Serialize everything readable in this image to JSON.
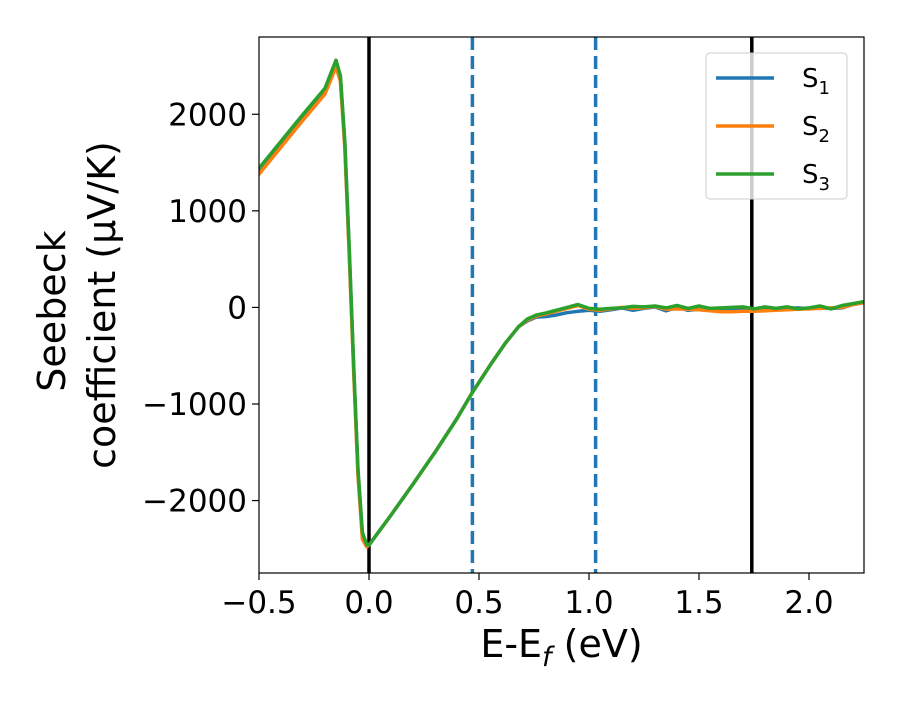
{
  "chart_data": {
    "type": "line",
    "xlabel": "E-E_f (eV)",
    "xlabel_parts": [
      "E-E",
      "f",
      " (eV)"
    ],
    "ylabel_lines": [
      "Seebeck",
      "coefficient  (μV/K)"
    ],
    "xlim": [
      -0.5,
      2.25
    ],
    "ylim": [
      -2750,
      2800
    ],
    "xticks": [
      -0.5,
      0.0,
      0.5,
      1.0,
      1.5,
      2.0
    ],
    "xtick_labels": [
      "−0.5",
      "0.0",
      "0.5",
      "1.0",
      "1.5",
      "2.0"
    ],
    "yticks": [
      -2000,
      -1000,
      0,
      1000,
      2000
    ],
    "ytick_labels": [
      "−2000",
      "−1000",
      "0",
      "1000",
      "2000"
    ],
    "grid": false,
    "legend_position": "top-right",
    "vertical_lines": [
      {
        "x": 0.0,
        "style": "solid",
        "color": "#000000"
      },
      {
        "x": 0.47,
        "style": "dashed",
        "color": "#1f77b4"
      },
      {
        "x": 1.03,
        "style": "dashed",
        "color": "#1f77b4"
      },
      {
        "x": 1.74,
        "style": "solid",
        "color": "#000000"
      }
    ],
    "series": [
      {
        "name": "S_1",
        "name_base": "S",
        "name_sub": "1",
        "color": "#1f77b4",
        "x": [
          -0.5,
          -0.3,
          -0.2,
          -0.15,
          -0.13,
          -0.11,
          -0.09,
          -0.07,
          -0.05,
          -0.03,
          -0.01,
          0.0,
          0.1,
          0.2,
          0.3,
          0.4,
          0.47,
          0.55,
          0.62,
          0.68,
          0.72,
          0.76,
          0.8,
          0.85,
          0.9,
          0.95,
          1.0,
          1.05,
          1.1,
          1.15,
          1.2,
          1.25,
          1.3,
          1.35,
          1.4,
          1.45,
          1.5,
          1.55,
          1.6,
          1.65,
          1.7,
          1.75,
          1.8,
          1.85,
          1.9,
          1.95,
          2.0,
          2.05,
          2.1,
          2.15,
          2.2,
          2.25
        ],
        "y": [
          1420,
          1980,
          2250,
          2540,
          2380,
          1700,
          600,
          -600,
          -1700,
          -2350,
          -2470,
          -2460,
          -2150,
          -1830,
          -1500,
          -1150,
          -880,
          -600,
          -370,
          -200,
          -140,
          -100,
          -95,
          -80,
          -55,
          -40,
          -30,
          -40,
          -25,
          -5,
          -30,
          -10,
          5,
          -35,
          0,
          -30,
          -20,
          -10,
          -15,
          -10,
          -25,
          -35,
          -20,
          -25,
          -10,
          -5,
          -15,
          -5,
          -10,
          -5,
          30,
          50
        ]
      },
      {
        "name": "S_2",
        "name_base": "S",
        "name_sub": "2",
        "color": "#ff7f0e",
        "x": [
          -0.5,
          -0.3,
          -0.2,
          -0.15,
          -0.13,
          -0.11,
          -0.09,
          -0.07,
          -0.05,
          -0.03,
          -0.01,
          0.0,
          0.1,
          0.2,
          0.3,
          0.4,
          0.47,
          0.55,
          0.62,
          0.68,
          0.72,
          0.76,
          0.8,
          0.85,
          0.9,
          0.95,
          1.0,
          1.05,
          1.1,
          1.15,
          1.2,
          1.25,
          1.3,
          1.35,
          1.4,
          1.45,
          1.5,
          1.55,
          1.6,
          1.65,
          1.7,
          1.75,
          1.8,
          1.85,
          1.9,
          1.95,
          2.0,
          2.05,
          2.1,
          2.15,
          2.2,
          2.25
        ],
        "y": [
          1380,
          1940,
          2210,
          2490,
          2340,
          1650,
          550,
          -650,
          -1750,
          -2400,
          -2480,
          -2460,
          -2150,
          -1830,
          -1500,
          -1150,
          -880,
          -600,
          -370,
          -200,
          -130,
          -90,
          -70,
          -40,
          -10,
          20,
          -20,
          -30,
          -15,
          0,
          -10,
          -5,
          10,
          -20,
          -15,
          -20,
          -25,
          -35,
          -45,
          -45,
          -40,
          -40,
          -35,
          -30,
          -25,
          -20,
          -15,
          -10,
          -5,
          0,
          30,
          50
        ]
      },
      {
        "name": "S_3",
        "name_base": "S",
        "name_sub": "3",
        "color": "#2ca02c",
        "x": [
          -0.5,
          -0.3,
          -0.2,
          -0.15,
          -0.13,
          -0.11,
          -0.09,
          -0.07,
          -0.05,
          -0.03,
          -0.01,
          0.0,
          0.1,
          0.2,
          0.3,
          0.4,
          0.47,
          0.55,
          0.62,
          0.68,
          0.72,
          0.76,
          0.8,
          0.85,
          0.9,
          0.95,
          1.0,
          1.05,
          1.1,
          1.15,
          1.2,
          1.25,
          1.3,
          1.35,
          1.4,
          1.45,
          1.5,
          1.55,
          1.6,
          1.65,
          1.7,
          1.75,
          1.8,
          1.85,
          1.9,
          1.95,
          2.0,
          2.05,
          2.1,
          2.15,
          2.2,
          2.25
        ],
        "y": [
          1440,
          2000,
          2270,
          2560,
          2400,
          1720,
          620,
          -580,
          -1680,
          -2330,
          -2460,
          -2460,
          -2150,
          -1830,
          -1500,
          -1150,
          -880,
          -600,
          -370,
          -200,
          -120,
          -80,
          -60,
          -30,
          0,
          30,
          -10,
          -20,
          -10,
          -5,
          10,
          5,
          15,
          -5,
          20,
          -10,
          15,
          -10,
          -5,
          0,
          5,
          -15,
          5,
          -10,
          5,
          -15,
          -5,
          15,
          -15,
          20,
          40,
          60
        ]
      }
    ]
  }
}
